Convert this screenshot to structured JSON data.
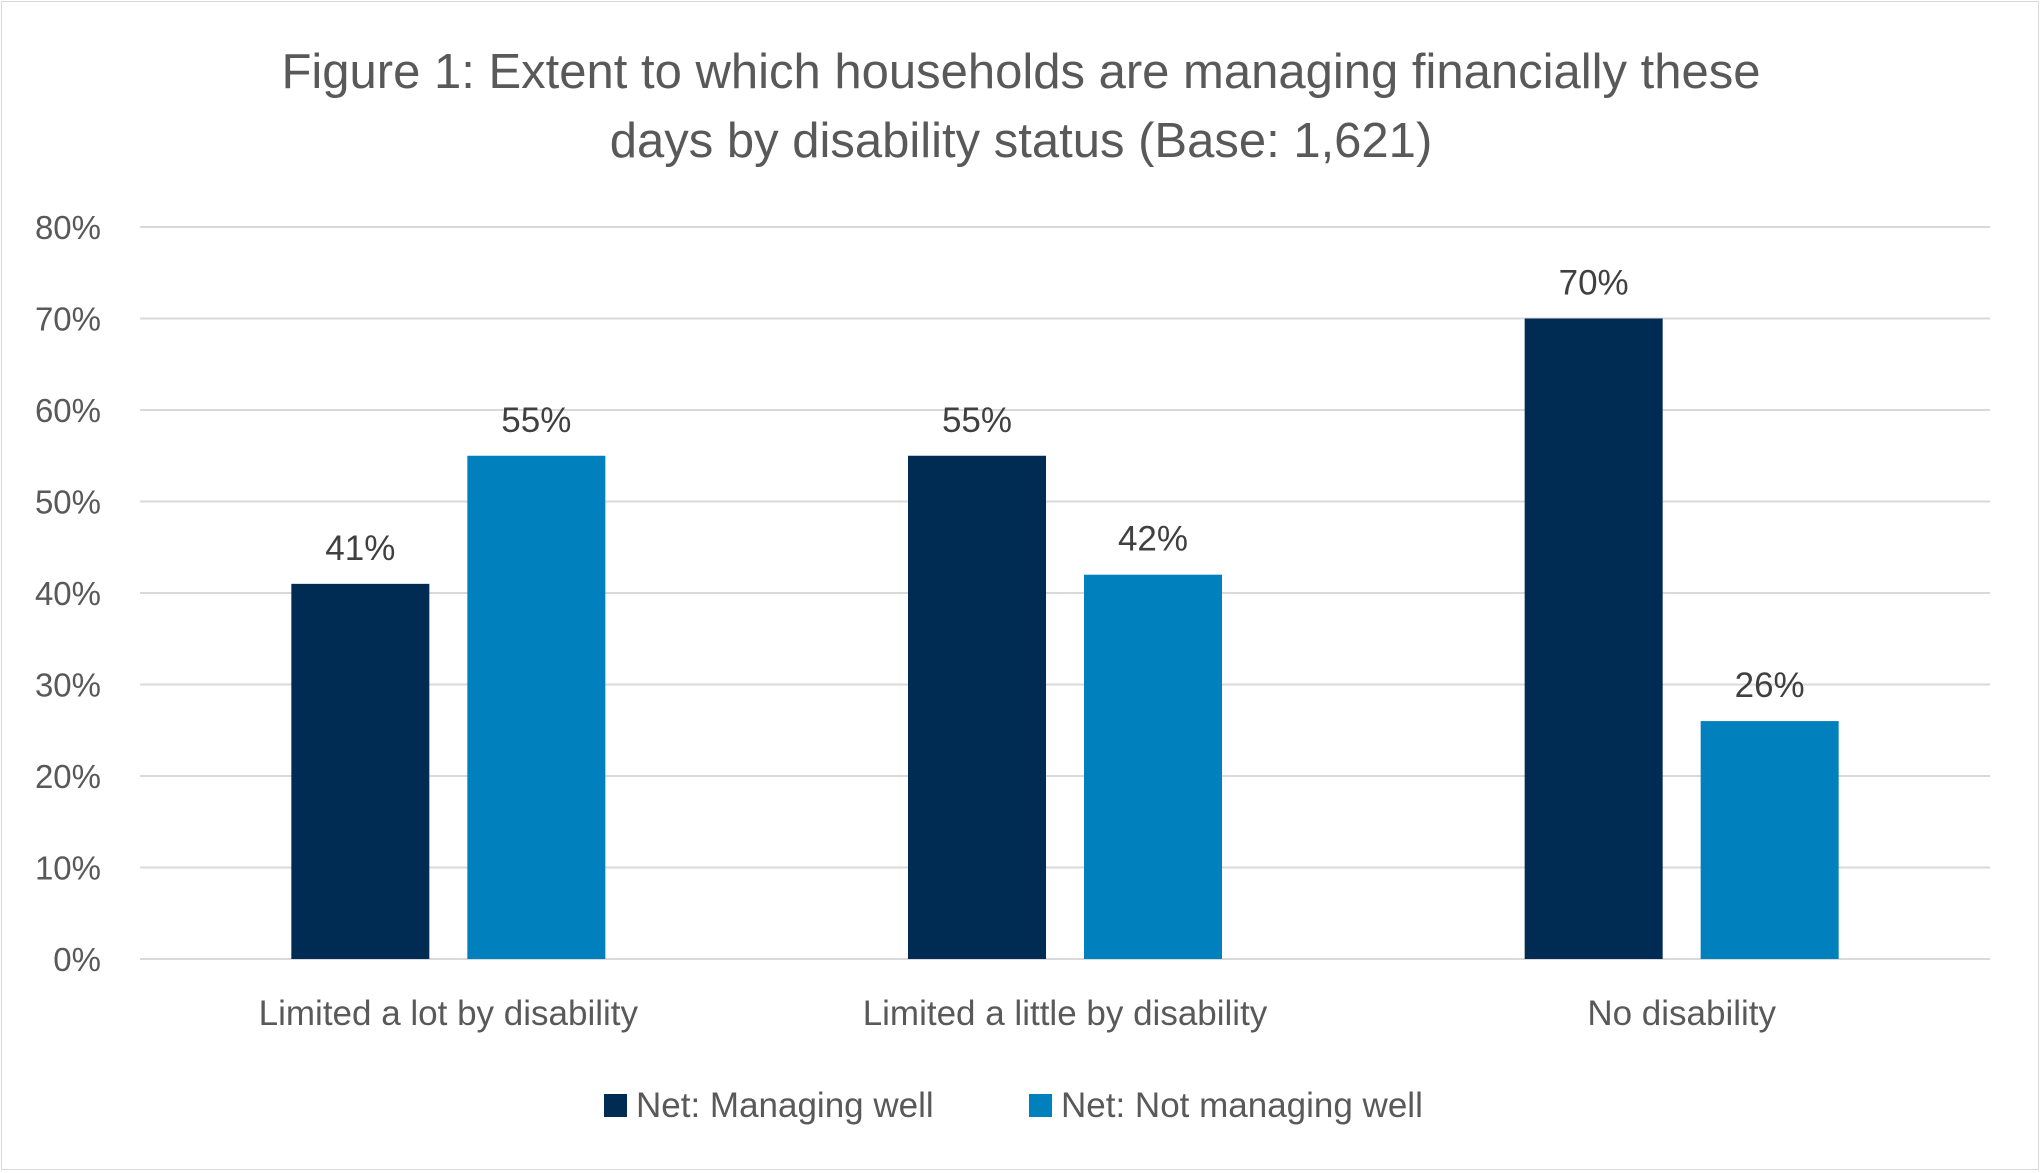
{
  "chart_data": {
    "type": "bar",
    "title_lines": [
      "Figure 1: Extent to which households are managing financially these",
      "days by disability status (Base: 1,621)"
    ],
    "categories": [
      "Limited a lot by disability",
      "Limited a little by disability",
      "No disability"
    ],
    "series": [
      {
        "name": "Net: Managing well",
        "color": "#002b53",
        "values": [
          41,
          55,
          70
        ],
        "labels": [
          "41%",
          "55%",
          "70%"
        ]
      },
      {
        "name": "Net: Not managing well",
        "color": "#0080bd",
        "values": [
          55,
          42,
          26
        ],
        "labels": [
          "55%",
          "42%",
          "26%"
        ]
      }
    ],
    "ylim": [
      0,
      80
    ],
    "yticks": [
      0,
      10,
      20,
      30,
      40,
      50,
      60,
      70,
      80
    ],
    "ytick_labels": [
      "0%",
      "10%",
      "20%",
      "30%",
      "40%",
      "50%",
      "60%",
      "70%",
      "80%"
    ],
    "grid": true,
    "legend_position": "bottom"
  }
}
